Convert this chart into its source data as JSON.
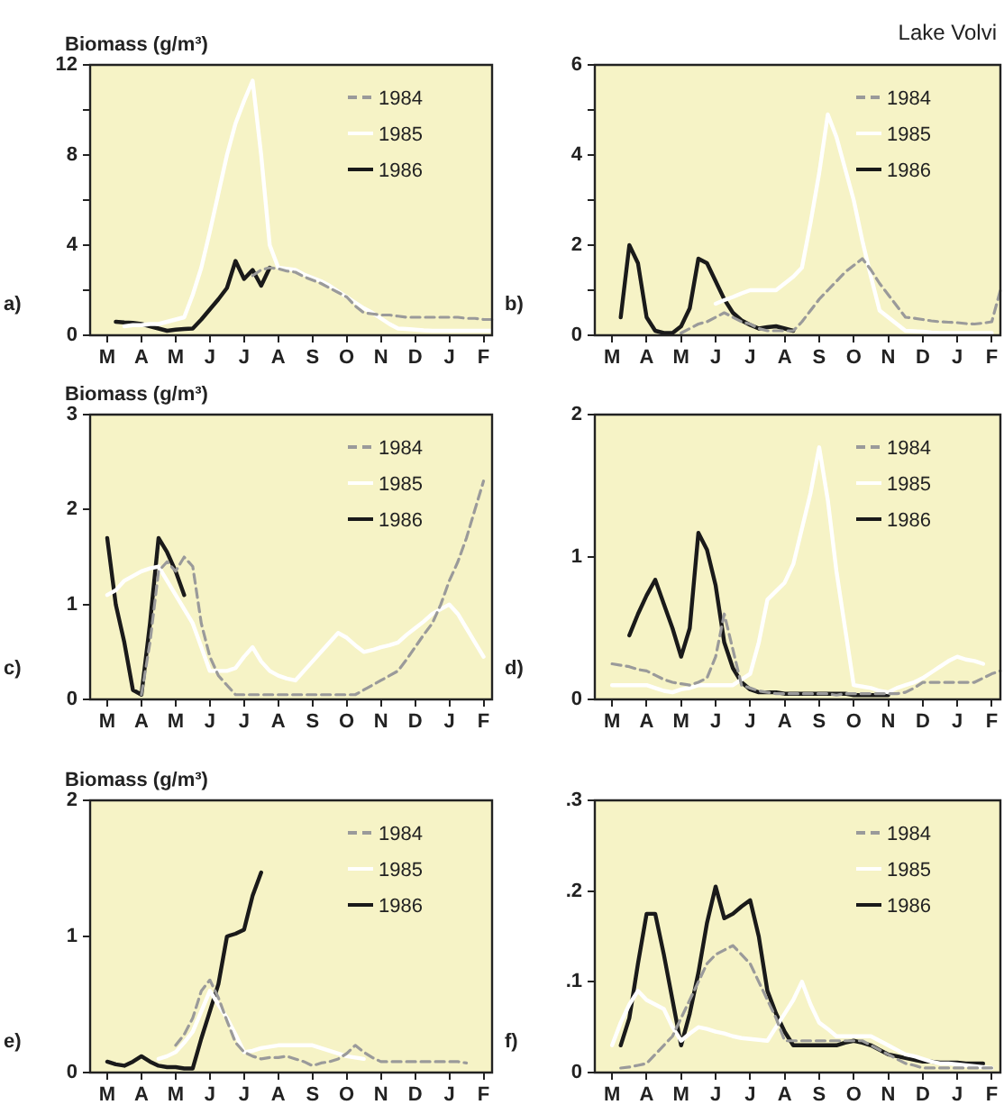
{
  "chart_data": [
    {
      "type": "line",
      "ylabel": "Biomass (g/m³)",
      "annotations": [
        "a)"
      ],
      "legend": "top right",
      "marker": "none",
      "categories": [
        null,
        null,
        "M",
        null,
        null,
        null,
        "A",
        null,
        null,
        null,
        "M",
        null,
        null,
        null,
        "J",
        null,
        null,
        null,
        "J",
        null,
        null,
        null,
        "A",
        null,
        null,
        null,
        "S",
        null,
        null,
        null,
        "O",
        null,
        null,
        null,
        "N",
        null,
        null,
        null,
        "D",
        null,
        null,
        null,
        "J",
        null,
        null,
        null,
        "F",
        null
      ],
      "ylim": [
        0,
        12
      ],
      "yticks": [
        0,
        {
          "value": 2,
          "label": null
        },
        4,
        {
          "value": 6,
          "label": null
        },
        8,
        {
          "value": 10,
          "label": null
        },
        12
      ],
      "series": [
        {
          "name": "1984",
          "color": "#9a9a9a",
          "line_style": "dashed",
          "values": [
            null,
            null,
            null,
            null,
            null,
            null,
            null,
            null,
            null,
            null,
            null,
            null,
            null,
            null,
            null,
            null,
            null,
            null,
            null,
            2.65,
            2.9,
            3.0,
            2.95,
            2.85,
            2.8,
            2.6,
            2.45,
            2.3,
            2.1,
            1.9,
            1.7,
            1.3,
            1.0,
            0.95,
            0.9,
            0.9,
            0.85,
            0.8,
            0.8,
            0.8,
            0.8,
            0.8,
            0.8,
            0.8,
            0.75,
            0.75,
            0.7,
            0.7
          ]
        },
        {
          "name": "1985",
          "color": "#ffffff",
          "line_style": "solid",
          "values": [
            null,
            null,
            null,
            null,
            0.4,
            0.45,
            0.45,
            0.5,
            0.5,
            0.6,
            0.7,
            0.8,
            1.8,
            3.0,
            4.6,
            6.3,
            8.0,
            9.4,
            10.4,
            11.3,
            8.0,
            4.0,
            3.0,
            2.95,
            2.9,
            2.7,
            2.55,
            2.4,
            2.2,
            1.95,
            1.7,
            1.45,
            1.2,
            1.0,
            0.75,
            0.5,
            0.3,
            0.28,
            0.25,
            0.22,
            0.2,
            0.2,
            0.2,
            0.2,
            0.2,
            0.2,
            0.2,
            0.2
          ]
        },
        {
          "name": "1986",
          "color": "#1a1a1a",
          "line_style": "solid",
          "values": [
            null,
            null,
            null,
            0.6,
            0.57,
            0.55,
            0.5,
            0.4,
            0.3,
            0.2,
            0.25,
            0.28,
            0.3,
            0.7,
            1.15,
            1.6,
            2.1,
            3.3,
            2.5,
            2.9,
            2.2,
            3.0,
            null,
            null,
            null,
            null,
            null,
            null,
            null,
            null,
            null,
            null,
            null,
            null,
            null,
            null,
            null,
            null,
            null,
            null,
            null,
            null,
            null,
            null,
            null,
            null,
            null,
            null
          ]
        }
      ]
    },
    {
      "type": "line",
      "title": "Lake Volvi",
      "annotations": [
        "b)"
      ],
      "legend": "top right",
      "marker": "none",
      "categories": [
        null,
        null,
        "M",
        null,
        null,
        null,
        "A",
        null,
        null,
        null,
        "M",
        null,
        null,
        null,
        "J",
        null,
        null,
        null,
        "J",
        null,
        null,
        null,
        "A",
        null,
        null,
        null,
        "S",
        null,
        null,
        null,
        "O",
        null,
        null,
        null,
        "N",
        null,
        null,
        null,
        "D",
        null,
        null,
        null,
        "J",
        null,
        null,
        null,
        "F",
        null
      ],
      "ylim": [
        0,
        6
      ],
      "yticks": [
        0,
        {
          "value": 1,
          "label": null
        },
        2,
        {
          "value": 3,
          "label": null
        },
        4,
        {
          "value": 5,
          "label": null
        },
        6
      ],
      "series": [
        {
          "name": "1984",
          "color": "#9a9a9a",
          "line_style": "dashed",
          "values": [
            null,
            null,
            null,
            null,
            null,
            null,
            null,
            null,
            null,
            null,
            0.05,
            0.15,
            0.25,
            0.3,
            0.4,
            0.5,
            0.4,
            0.3,
            0.25,
            0.15,
            0.1,
            0.1,
            0.1,
            0.1,
            0.3,
            0.55,
            0.8,
            1.0,
            1.2,
            1.4,
            1.55,
            1.7,
            1.45,
            1.15,
            0.9,
            0.65,
            0.4,
            0.38,
            0.35,
            0.32,
            0.3,
            0.29,
            0.28,
            0.26,
            0.25,
            0.27,
            0.3,
            1.0
          ]
        },
        {
          "name": "1985",
          "color": "#ffffff",
          "line_style": "solid",
          "values": [
            null,
            null,
            null,
            null,
            null,
            null,
            null,
            null,
            null,
            null,
            null,
            null,
            null,
            null,
            0.7,
            0.78,
            0.85,
            0.93,
            1.0,
            1.0,
            1.0,
            1.0,
            1.15,
            1.3,
            1.5,
            2.5,
            3.6,
            4.9,
            4.4,
            3.7,
            3.0,
            2.1,
            1.3,
            0.55,
            0.4,
            0.25,
            0.1,
            0.09,
            0.08,
            0.06,
            0.05,
            0.05,
            0.05,
            0.05,
            0.05,
            0.05,
            0.05,
            null
          ]
        },
        {
          "name": "1986",
          "color": "#1a1a1a",
          "line_style": "solid",
          "values": [
            null,
            null,
            null,
            0.4,
            2.0,
            1.6,
            0.4,
            0.1,
            0.05,
            0.05,
            0.2,
            0.6,
            1.7,
            1.6,
            1.2,
            0.8,
            0.5,
            0.33,
            0.23,
            0.15,
            0.18,
            0.2,
            0.15,
            0.1,
            null,
            null,
            null,
            null,
            null,
            null,
            null,
            null,
            null,
            null,
            null,
            null,
            null,
            null,
            null,
            null,
            null,
            null,
            null,
            null,
            null,
            null,
            null,
            null
          ]
        }
      ]
    },
    {
      "type": "line",
      "ylabel": "Biomass (g/m³)",
      "annotations": [
        "c)"
      ],
      "legend": "top right",
      "marker": "none",
      "categories": [
        null,
        null,
        "M",
        null,
        null,
        null,
        "A",
        null,
        null,
        null,
        "M",
        null,
        null,
        null,
        "J",
        null,
        null,
        null,
        "J",
        null,
        null,
        null,
        "A",
        null,
        null,
        null,
        "S",
        null,
        null,
        null,
        "O",
        null,
        null,
        null,
        "N",
        null,
        null,
        null,
        "D",
        null,
        null,
        null,
        "J",
        null,
        null,
        null,
        "F",
        null
      ],
      "ylim": [
        0,
        3
      ],
      "yticks": [
        0,
        1,
        2,
        3
      ],
      "series": [
        {
          "name": "1984",
          "color": "#9a9a9a",
          "line_style": "dashed",
          "values": [
            null,
            null,
            null,
            null,
            null,
            null,
            0.05,
            0.6,
            1.35,
            1.45,
            1.35,
            1.5,
            1.4,
            0.8,
            0.45,
            0.25,
            0.15,
            0.05,
            0.05,
            0.05,
            0.05,
            0.05,
            0.05,
            0.05,
            0.05,
            0.05,
            0.05,
            0.05,
            0.05,
            0.05,
            0.05,
            0.05,
            0.1,
            0.15,
            0.2,
            0.25,
            0.3,
            0.42,
            0.55,
            0.68,
            0.8,
            1.0,
            1.25,
            1.45,
            1.7,
            2.0,
            2.3,
            null
          ]
        },
        {
          "name": "1985",
          "color": "#ffffff",
          "line_style": "solid",
          "values": [
            null,
            null,
            1.1,
            1.15,
            1.25,
            1.3,
            1.35,
            1.38,
            1.4,
            1.25,
            1.1,
            0.95,
            0.8,
            0.55,
            0.3,
            0.3,
            0.3,
            0.33,
            0.45,
            0.55,
            0.4,
            0.3,
            0.25,
            0.22,
            0.2,
            0.3,
            0.4,
            0.5,
            0.6,
            0.7,
            0.65,
            0.57,
            0.5,
            0.52,
            0.55,
            0.57,
            0.6,
            0.68,
            0.75,
            0.82,
            0.9,
            0.95,
            1.0,
            0.9,
            0.75,
            0.6,
            0.45,
            null
          ]
        },
        {
          "name": "1986",
          "color": "#1a1a1a",
          "line_style": "solid",
          "values": [
            null,
            null,
            1.7,
            1.0,
            0.6,
            0.1,
            0.05,
            0.8,
            1.7,
            1.55,
            1.35,
            1.1,
            null,
            null,
            null,
            null,
            null,
            null,
            null,
            null,
            null,
            null,
            null,
            null,
            null,
            null,
            null,
            null,
            null,
            null,
            null,
            null,
            null,
            null,
            null,
            null,
            null,
            null,
            null,
            null,
            null,
            null,
            null,
            null,
            null,
            null,
            null,
            null
          ]
        }
      ]
    },
    {
      "type": "line",
      "annotations": [
        "d)"
      ],
      "legend": "top right",
      "marker": "none",
      "categories": [
        null,
        null,
        "M",
        null,
        null,
        null,
        "A",
        null,
        null,
        null,
        "M",
        null,
        null,
        null,
        "J",
        null,
        null,
        null,
        "J",
        null,
        null,
        null,
        "A",
        null,
        null,
        null,
        "S",
        null,
        null,
        null,
        "O",
        null,
        null,
        null,
        "N",
        null,
        null,
        null,
        "D",
        null,
        null,
        null,
        "J",
        null,
        null,
        null,
        "F",
        null
      ],
      "ylim": [
        0,
        2
      ],
      "yticks": [
        0,
        1,
        2
      ],
      "series": [
        {
          "name": "1984",
          "color": "#9a9a9a",
          "line_style": "dashed",
          "values": [
            null,
            null,
            0.25,
            0.24,
            0.23,
            0.21,
            0.2,
            0.17,
            0.14,
            0.12,
            0.11,
            0.1,
            0.12,
            0.15,
            0.3,
            0.6,
            0.35,
            0.1,
            0.08,
            0.06,
            0.05,
            0.04,
            0.04,
            0.04,
            0.04,
            0.04,
            0.04,
            0.04,
            0.03,
            0.04,
            0.04,
            0.04,
            0.04,
            0.04,
            0.04,
            0.04,
            0.05,
            0.08,
            0.12,
            0.12,
            0.12,
            0.12,
            0.12,
            0.12,
            0.12,
            0.15,
            0.18,
            0.2
          ]
        },
        {
          "name": "1985",
          "color": "#ffffff",
          "line_style": "solid",
          "values": [
            null,
            null,
            0.1,
            0.1,
            0.1,
            0.1,
            0.1,
            0.08,
            0.06,
            0.05,
            0.07,
            0.08,
            0.1,
            0.1,
            0.1,
            0.1,
            0.1,
            0.14,
            0.18,
            0.4,
            0.7,
            0.76,
            0.82,
            0.95,
            1.2,
            1.45,
            1.77,
            1.4,
            0.9,
            0.5,
            0.1,
            0.09,
            0.08,
            0.06,
            0.05,
            0.08,
            0.1,
            0.12,
            0.15,
            0.19,
            0.23,
            0.27,
            0.3,
            0.28,
            0.27,
            0.25,
            null,
            null
          ]
        },
        {
          "name": "1986",
          "color": "#1a1a1a",
          "line_style": "solid",
          "values": [
            null,
            null,
            null,
            null,
            0.45,
            0.6,
            0.73,
            0.84,
            0.67,
            0.5,
            0.3,
            0.5,
            1.17,
            1.05,
            0.8,
            0.4,
            0.22,
            0.12,
            0.07,
            0.05,
            0.05,
            0.05,
            0.04,
            0.04,
            0.04,
            0.04,
            0.04,
            0.04,
            0.04,
            0.04,
            0.03,
            0.03,
            0.03,
            0.03,
            0.03,
            null,
            null,
            null,
            null,
            null,
            null,
            null,
            null,
            null,
            null,
            null,
            null,
            null
          ]
        }
      ]
    },
    {
      "type": "line",
      "ylabel": "Biomass (g/m³)",
      "annotations": [
        "e)"
      ],
      "legend": "top right",
      "marker": "none",
      "categories": [
        null,
        null,
        "M",
        null,
        null,
        null,
        "A",
        null,
        null,
        null,
        "M",
        null,
        null,
        null,
        "J",
        null,
        null,
        null,
        "J",
        null,
        null,
        null,
        "A",
        null,
        null,
        null,
        "S",
        null,
        null,
        null,
        "O",
        null,
        null,
        null,
        "N",
        null,
        null,
        null,
        "D",
        null,
        null,
        null,
        "J",
        null,
        null,
        null,
        "F",
        null
      ],
      "ylim": [
        0,
        2
      ],
      "yticks": [
        0,
        1,
        2
      ],
      "series": [
        {
          "name": "1984",
          "color": "#9a9a9a",
          "line_style": "dashed",
          "values": [
            null,
            null,
            null,
            null,
            null,
            null,
            null,
            null,
            null,
            null,
            0.2,
            0.28,
            0.4,
            0.6,
            0.68,
            0.55,
            0.38,
            0.22,
            0.15,
            0.12,
            0.1,
            0.11,
            0.11,
            0.12,
            0.1,
            0.08,
            0.05,
            0.07,
            0.08,
            0.1,
            0.14,
            0.2,
            0.15,
            0.11,
            0.08,
            0.08,
            0.08,
            0.08,
            0.08,
            0.08,
            0.08,
            0.08,
            0.08,
            0.08,
            0.07,
            null,
            null,
            null
          ]
        },
        {
          "name": "1985",
          "color": "#ffffff",
          "line_style": "solid",
          "values": [
            null,
            null,
            null,
            null,
            null,
            null,
            null,
            null,
            0.1,
            0.12,
            0.15,
            0.22,
            0.3,
            0.45,
            0.6,
            0.5,
            0.4,
            0.28,
            0.15,
            0.16,
            0.18,
            0.19,
            0.2,
            0.2,
            0.2,
            0.2,
            0.2,
            0.18,
            0.16,
            0.14,
            0.12,
            0.11,
            0.1,
            null,
            null,
            null,
            null,
            null,
            null,
            null,
            null,
            null,
            null,
            null,
            null,
            null,
            null,
            null
          ]
        },
        {
          "name": "1986",
          "color": "#1a1a1a",
          "line_style": "solid",
          "values": [
            null,
            null,
            0.08,
            0.06,
            0.05,
            0.08,
            0.12,
            0.08,
            0.05,
            0.04,
            0.04,
            0.03,
            0.03,
            0.25,
            0.45,
            0.65,
            1.0,
            1.02,
            1.05,
            1.3,
            1.47,
            null,
            null,
            null,
            null,
            null,
            null,
            null,
            null,
            null,
            null,
            null,
            null,
            null,
            null,
            null,
            null,
            null,
            null,
            null,
            null,
            null,
            null,
            null,
            null,
            null,
            null,
            null
          ]
        }
      ]
    },
    {
      "type": "line",
      "annotations": [
        "f)"
      ],
      "legend": "top right",
      "marker": "none",
      "categories": [
        null,
        null,
        "M",
        null,
        null,
        null,
        "A",
        null,
        null,
        null,
        "M",
        null,
        null,
        null,
        "J",
        null,
        null,
        null,
        "J",
        null,
        null,
        null,
        "A",
        null,
        null,
        null,
        "S",
        null,
        null,
        null,
        "O",
        null,
        null,
        null,
        "N",
        null,
        null,
        null,
        "D",
        null,
        null,
        null,
        "J",
        null,
        null,
        null,
        "F",
        null
      ],
      "ylim": [
        0,
        0.3
      ],
      "yticks": [
        0,
        {
          "value": 0.1,
          "label": ".1"
        },
        {
          "value": 0.2,
          "label": ".2"
        },
        {
          "value": 0.3,
          "label": ".3"
        }
      ],
      "series": [
        {
          "name": "1984",
          "color": "#9a9a9a",
          "line_style": "dashed",
          "values": [
            null,
            null,
            null,
            0.005,
            0.006,
            0.008,
            0.01,
            0.02,
            0.03,
            0.04,
            0.06,
            0.08,
            0.1,
            0.12,
            0.13,
            0.135,
            0.14,
            0.13,
            0.12,
            0.1,
            0.08,
            0.06,
            0.035,
            0.035,
            0.035,
            0.035,
            0.035,
            0.035,
            0.035,
            0.035,
            0.035,
            0.035,
            0.03,
            0.025,
            0.02,
            0.015,
            0.01,
            0.008,
            0.005,
            0.005,
            0.005,
            0.005,
            0.005,
            0.005,
            0.005,
            0.005,
            0.005,
            null
          ]
        },
        {
          "name": "1985",
          "color": "#ffffff",
          "line_style": "solid",
          "values": [
            null,
            null,
            0.03,
            0.055,
            0.075,
            0.09,
            0.08,
            0.075,
            0.07,
            0.05,
            0.035,
            0.043,
            0.05,
            0.048,
            0.045,
            0.043,
            0.04,
            0.038,
            0.037,
            0.036,
            0.035,
            0.05,
            0.065,
            0.08,
            0.1,
            0.075,
            0.055,
            0.048,
            0.04,
            0.04,
            0.04,
            0.04,
            0.04,
            0.035,
            0.03,
            0.025,
            0.02,
            0.018,
            0.015,
            0.012,
            0.01,
            0.01,
            0.009,
            0.008,
            0.007,
            0.006,
            0.005,
            null
          ]
        },
        {
          "name": "1986",
          "color": "#1a1a1a",
          "line_style": "solid",
          "values": [
            null,
            null,
            null,
            0.03,
            0.06,
            0.12,
            0.175,
            0.175,
            0.13,
            0.08,
            0.03,
            0.065,
            0.11,
            0.165,
            0.205,
            0.17,
            0.175,
            0.183,
            0.19,
            0.15,
            0.09,
            0.065,
            0.045,
            0.03,
            0.03,
            0.03,
            0.03,
            0.03,
            0.03,
            0.033,
            0.035,
            0.033,
            0.03,
            0.025,
            0.02,
            0.018,
            0.016,
            0.014,
            0.012,
            0.012,
            0.011,
            0.011,
            0.011,
            0.01,
            0.01,
            0.01,
            null,
            null
          ]
        }
      ]
    }
  ]
}
